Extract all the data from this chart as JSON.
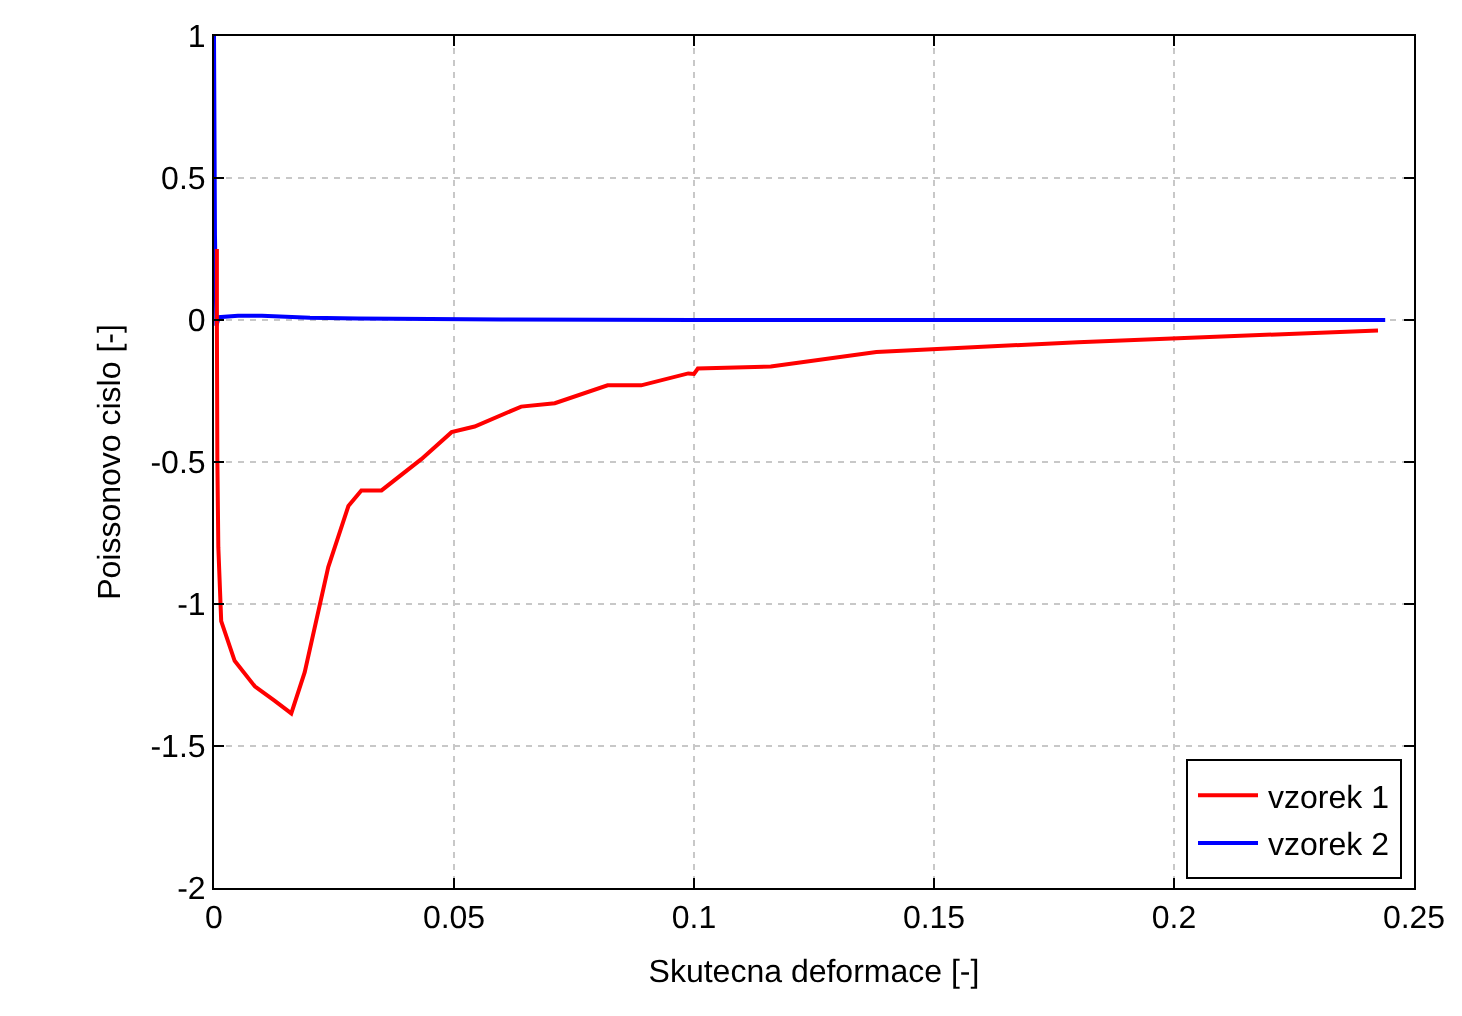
{
  "chart_data": {
    "type": "line",
    "xlabel": "Skutecna deformace [-]",
    "ylabel": "Poissonovo cislo [-]",
    "xlim": [
      0,
      0.25
    ],
    "ylim": [
      -2,
      1
    ],
    "xticks": [
      0,
      0.05,
      0.1,
      0.15,
      0.2,
      0.25
    ],
    "yticks": [
      -2,
      -1.5,
      -1,
      -0.5,
      0,
      0.5,
      1
    ],
    "grid": true,
    "legend": "bottom right",
    "line_style": "solid",
    "marker": "none",
    "series": [
      {
        "name": "vzorek 1",
        "color": "#ff0000",
        "x": [
          0.0006,
          0.0006,
          0.0007,
          0.0009,
          0.0015,
          0.0043,
          0.0085,
          0.0126,
          0.0161,
          0.0189,
          0.0238,
          0.028,
          0.0307,
          0.0349,
          0.0432,
          0.0495,
          0.0543,
          0.064,
          0.071,
          0.082,
          0.089,
          0.0988,
          0.1,
          0.1008,
          0.116,
          0.138,
          0.18,
          0.2425
        ],
        "values": [
          0.25,
          0,
          -0.49,
          -0.8,
          -1.06,
          -1.2,
          -1.29,
          -1.34,
          -1.385,
          -1.24,
          -0.87,
          -0.655,
          -0.6,
          -0.6,
          -0.49,
          -0.395,
          -0.375,
          -0.305,
          -0.293,
          -0.23,
          -0.23,
          -0.188,
          -0.19,
          -0.171,
          -0.164,
          -0.113,
          -0.078,
          -0.037
        ]
      },
      {
        "name": "vzorek 2",
        "color": "#0000ff",
        "x": [
          0,
          0.0002,
          0.0005,
          0.001,
          0.005,
          0.01,
          0.02,
          0.03,
          0.06,
          0.1,
          0.15,
          0.2,
          0.244
        ],
        "values": [
          1,
          0.3,
          -0.02,
          0.01,
          0.015,
          0.015,
          0.008,
          0.005,
          0.002,
          0,
          0,
          0,
          0
        ]
      }
    ]
  }
}
